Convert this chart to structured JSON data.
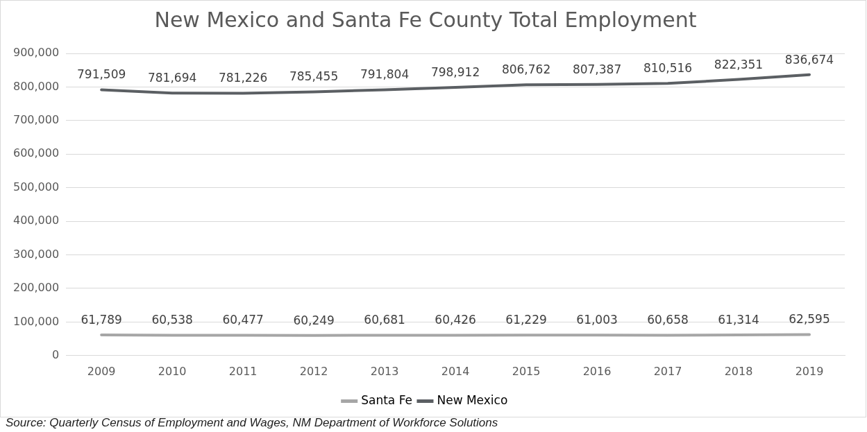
{
  "chart_data": {
    "type": "line",
    "title": "New Mexico and Santa Fe County Total Employment",
    "categories": [
      "2009",
      "2010",
      "2011",
      "2012",
      "2013",
      "2014",
      "2015",
      "2016",
      "2017",
      "2018",
      "2019"
    ],
    "series": [
      {
        "name": "Santa Fe",
        "color": "#a6a6a6",
        "values": [
          61789,
          60538,
          60477,
          60249,
          60681,
          60426,
          61229,
          61003,
          60658,
          61314,
          62595
        ],
        "value_labels": [
          "61,789",
          "60,538",
          "60,477",
          "60,249",
          "60,681",
          "60,426",
          "61,229",
          "61,003",
          "60,658",
          "61,314",
          "62,595"
        ]
      },
      {
        "name": "New Mexico",
        "color": "#5b5f63",
        "values": [
          791509,
          781694,
          781226,
          785455,
          791804,
          798912,
          806762,
          807387,
          810516,
          822351,
          836674
        ],
        "value_labels": [
          "791,509",
          "781,694",
          "781,226",
          "785,455",
          "791,804",
          "798,912",
          "806,762",
          "807,387",
          "810,516",
          "822,351",
          "836,674"
        ]
      }
    ],
    "ylim": [
      0,
      900000
    ],
    "yticks": [
      0,
      {
        "value": 100000,
        "label": "100,000"
      },
      {
        "value": 200000,
        "label": "200,000"
      },
      {
        "value": 300000,
        "label": "300,000"
      },
      {
        "value": 400000,
        "label": "400,000"
      },
      {
        "value": 500000,
        "label": "500,000"
      },
      {
        "value": 600000,
        "label": "600,000"
      },
      {
        "value": 700000,
        "label": "700,000"
      },
      {
        "value": 800000,
        "label": "800,000"
      },
      {
        "value": 900000,
        "label": "900,000"
      }
    ],
    "grid": "y",
    "legend": "bottom",
    "marker": "none",
    "line_style": "solid",
    "annotations": [
      "Source: Quarterly Census of Employment and Wages, NM Department of Workforce Solutions"
    ]
  }
}
